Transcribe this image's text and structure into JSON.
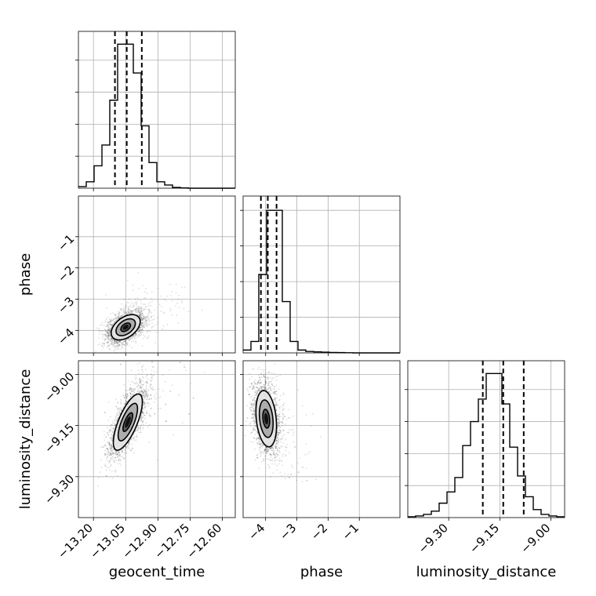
{
  "chart_data": {
    "type": "corner",
    "parameters": [
      "geocent_time",
      "phase",
      "luminosity_distance"
    ],
    "axis_labels": {
      "x": [
        "geocent_time",
        "phase",
        "luminosity_distance"
      ],
      "y": [
        "",
        "phase",
        "luminosity_distance"
      ]
    },
    "ranges": {
      "geocent_time": [
        -13.27,
        -12.54
      ],
      "phase": [
        -4.72,
        0.3
      ],
      "luminosity_distance": [
        -9.42,
        -8.96
      ]
    },
    "ticks": {
      "geocent_time": [
        -13.2,
        -13.05,
        -12.9,
        -12.75,
        -12.6
      ],
      "phase": [
        -4,
        -3,
        -2,
        -1
      ],
      "luminosity_distance": [
        -9.3,
        -9.15,
        -9.0
      ]
    },
    "tick_labels": {
      "geocent_time": [
        "−13.20",
        "−13.05",
        "−12.90",
        "−12.75",
        "−12.60"
      ],
      "phase": [
        "−4",
        "−3",
        "−2",
        "−1"
      ],
      "luminosity_distance": [
        "−9.30",
        "−9.15",
        "−9.00"
      ]
    },
    "grid": true,
    "quantiles": {
      "geocent_time": [
        -13.1,
        -13.045,
        -12.975
      ],
      "phase": [
        -4.15,
        -3.93,
        -3.65
      ],
      "luminosity_distance": [
        -9.2,
        -9.14,
        -9.08
      ]
    },
    "histograms": {
      "geocent_time": {
        "edges": [
          -13.27,
          -13.2335,
          -13.197,
          -13.1605,
          -13.124,
          -13.0875,
          -13.051,
          -13.0145,
          -12.978,
          -12.9415,
          -12.905,
          -12.8685,
          -12.832,
          -12.7955,
          -12.759,
          -12.7225,
          -12.686,
          -12.6495,
          -12.613,
          -12.5765,
          -12.54
        ],
        "counts": [
          1,
          4,
          14,
          27,
          55,
          90,
          90,
          72,
          39,
          16,
          4,
          2,
          0.5,
          0.2,
          0,
          0,
          0,
          0,
          0,
          0
        ]
      },
      "phase": {
        "edges": [
          -4.72,
          -4.469,
          -4.218,
          -3.967,
          -3.716,
          -3.465,
          -3.214,
          -2.963,
          -2.712,
          -2.461,
          -2.21,
          -1.959,
          -1.708,
          -1.457,
          -1.206,
          -0.955,
          -0.704,
          -0.453,
          -0.202,
          0.049,
          0.3
        ],
        "counts": [
          2,
          8,
          55,
          100,
          100,
          36,
          8,
          2,
          1,
          0.7,
          0.5,
          0.3,
          0.2,
          0.1,
          0,
          0,
          0,
          0,
          0,
          0
        ]
      },
      "luminosity_distance": {
        "edges": [
          -9.42,
          -9.397,
          -9.374,
          -9.351,
          -9.328,
          -9.305,
          -9.282,
          -9.259,
          -9.236,
          -9.213,
          -9.19,
          -9.167,
          -9.144,
          -9.121,
          -9.098,
          -9.075,
          -9.052,
          -9.029,
          -9.006,
          -8.983,
          -8.96
        ],
        "counts": [
          0.5,
          1,
          2,
          4,
          9,
          16,
          25,
          45,
          60,
          74,
          90,
          90,
          71,
          44,
          26,
          13,
          5,
          2,
          1,
          0.5
        ]
      }
    },
    "hist_ymax": {
      "geocent_time": 98,
      "phase": 110,
      "luminosity_distance": 98
    },
    "pairs": [
      {
        "x": "geocent_time",
        "y": "phase",
        "mean": [
          -13.05,
          -3.9
        ],
        "sigma": [
          0.045,
          0.27
        ],
        "rho": 0.45,
        "contour_levels": [
          0.5,
          1.0,
          1.5
        ]
      },
      {
        "x": "geocent_time",
        "y": "luminosity_distance",
        "mean": [
          -13.04,
          -9.14
        ],
        "sigma": [
          0.045,
          0.055
        ],
        "rho": 0.72,
        "contour_levels": [
          0.5,
          1.0,
          1.5
        ]
      },
      {
        "x": "phase",
        "y": "luminosity_distance",
        "mean": [
          -3.98,
          -9.13
        ],
        "sigma": [
          0.22,
          0.055
        ],
        "rho": -0.25,
        "contour_levels": [
          0.5,
          1.0,
          1.5
        ]
      }
    ]
  }
}
